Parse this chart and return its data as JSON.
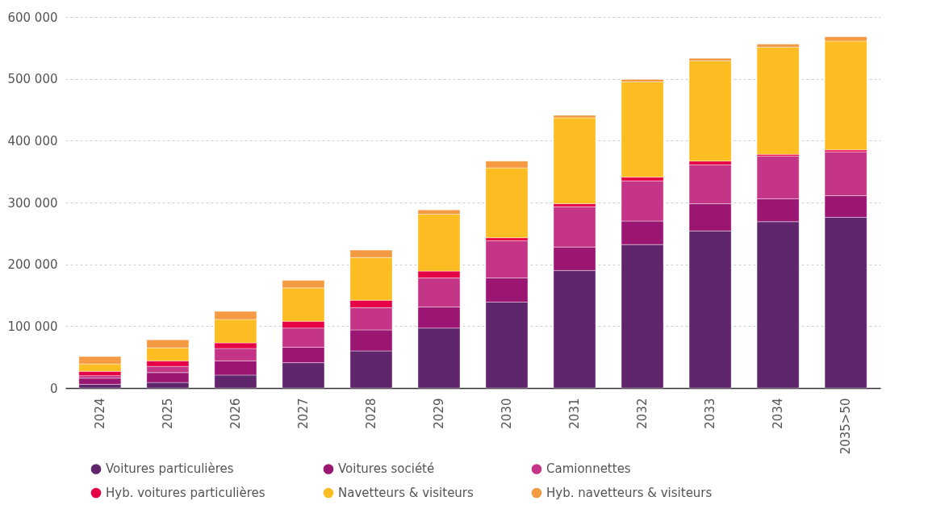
{
  "chart_data": {
    "type": "bar",
    "stacked": true,
    "categories": [
      "2024",
      "2025",
      "2026",
      "2027",
      "2028",
      "2029",
      "2030",
      "2031",
      "2032",
      "2033",
      "2034",
      "2035>50"
    ],
    "series": [
      {
        "name": "Voitures particulières",
        "color": "#60266b",
        "values": [
          6000,
          9000,
          21000,
          41000,
          60000,
          97000,
          139000,
          190000,
          232000,
          254000,
          269000,
          276000
        ]
      },
      {
        "name": "Voitures société",
        "color": "#9a1672",
        "values": [
          10000,
          16000,
          23000,
          25000,
          34000,
          34000,
          39000,
          38000,
          38000,
          44000,
          37000,
          35000
        ]
      },
      {
        "name": "Camionnettes",
        "color": "#c53587",
        "values": [
          4000,
          10000,
          20000,
          31000,
          36000,
          47000,
          60000,
          65000,
          65000,
          63000,
          69000,
          71000
        ]
      },
      {
        "name": "Hyb. voitures particulières",
        "color": "#e60045",
        "values": [
          7000,
          9000,
          9000,
          11000,
          12000,
          11000,
          5000,
          5000,
          6000,
          6000,
          3000,
          3000
        ]
      },
      {
        "name": "Navetteurs & visiteurs",
        "color": "#fcbd22",
        "values": [
          12000,
          21000,
          38000,
          54000,
          69000,
          92000,
          113000,
          139000,
          154000,
          162000,
          173000,
          176000
        ]
      },
      {
        "name": "Hyb. navetteurs & visiteurs",
        "color": "#f39a43",
        "values": [
          12000,
          13000,
          13000,
          12000,
          12000,
          7000,
          11000,
          4000,
          4000,
          4000,
          5000,
          7000
        ]
      }
    ],
    "ylim": [
      0,
      600000
    ],
    "yticks": [
      {
        "value": 0,
        "label": "0"
      },
      {
        "value": 100000,
        "label": "100 000"
      },
      {
        "value": 200000,
        "label": "200 000"
      },
      {
        "value": 300000,
        "label": "300 000"
      },
      {
        "value": 400000,
        "label": "400 000"
      },
      {
        "value": 500000,
        "label": "500 000"
      },
      {
        "value": 600000,
        "label": "600 000"
      }
    ],
    "grid": "y",
    "legend": "bottom"
  }
}
